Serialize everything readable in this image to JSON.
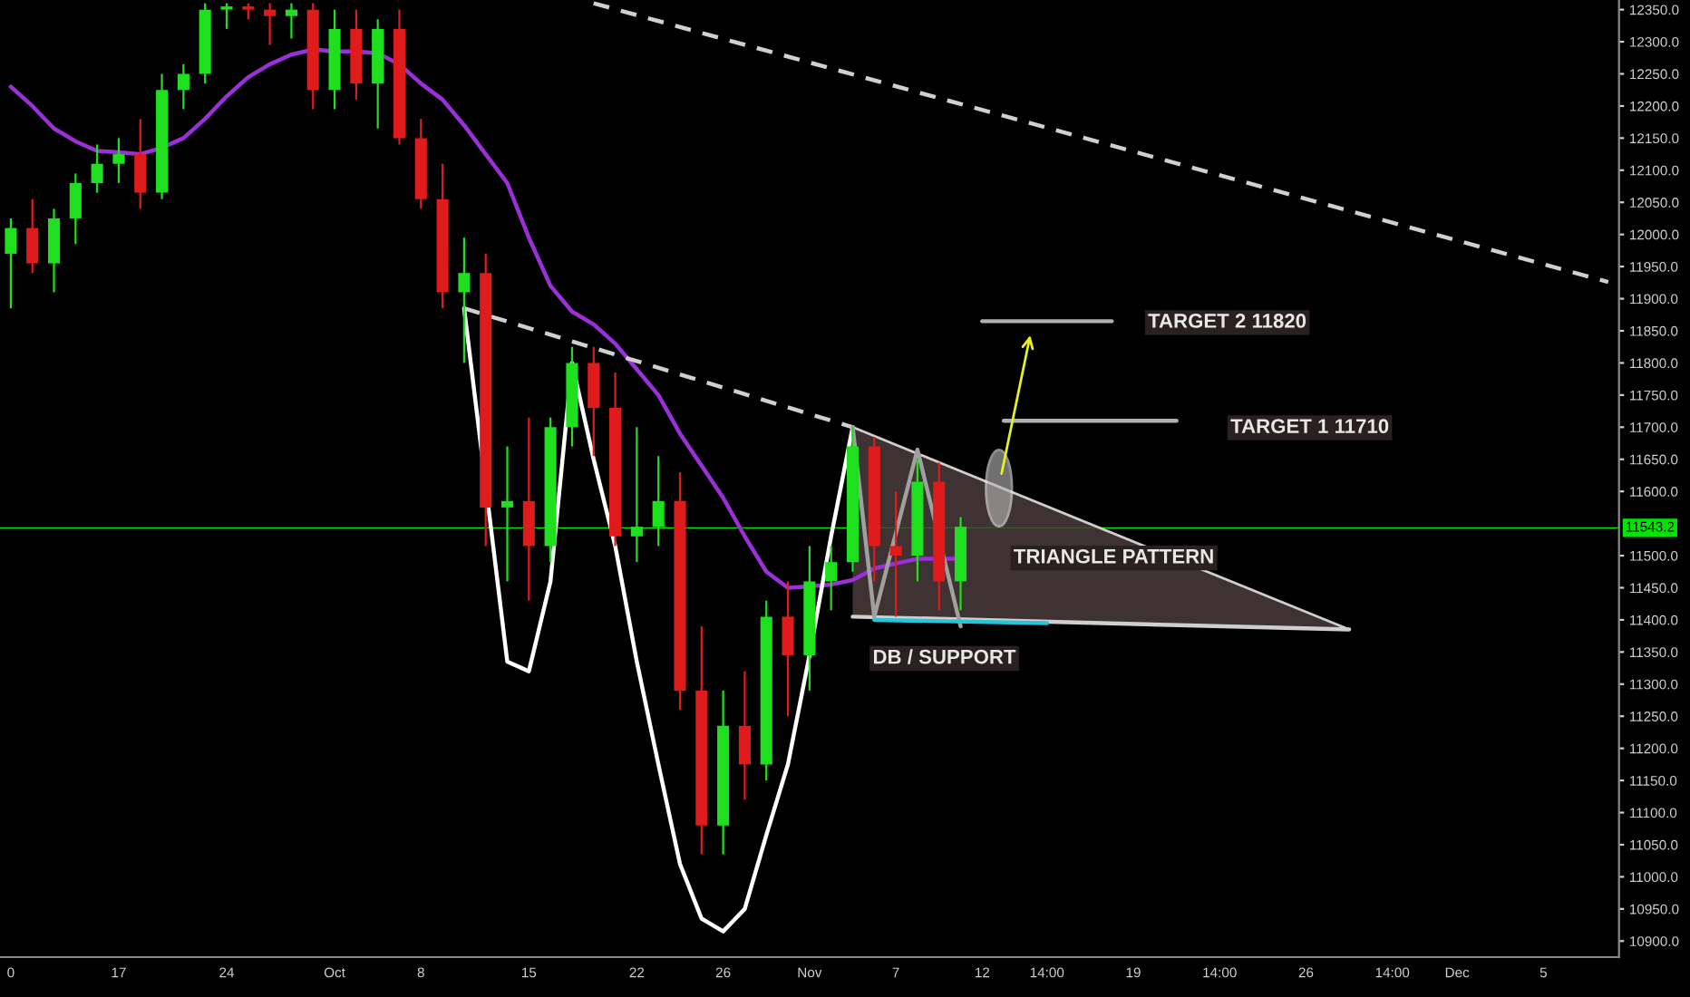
{
  "chart_data": {
    "type": "candlestick",
    "categories": [
      "0",
      null,
      null,
      null,
      null,
      "17",
      null,
      null,
      null,
      null,
      "24",
      null,
      null,
      null,
      null,
      "Oct",
      null,
      null,
      null,
      "8",
      null,
      null,
      null,
      null,
      "15",
      null,
      null,
      null,
      null,
      "22",
      null,
      null,
      null,
      "26",
      null,
      null,
      null,
      "Nov",
      null,
      null,
      null,
      "7",
      null,
      null,
      null,
      "12",
      null,
      null,
      "14:00",
      null,
      null,
      null,
      "19",
      null,
      null,
      null,
      "14:00",
      null,
      null,
      null,
      "26",
      null,
      null,
      null,
      "14:00",
      null,
      null,
      "Dec",
      null,
      null,
      null,
      "5",
      null,
      null,
      null
    ],
    "ohlc": [
      [
        11970,
        12025,
        11885,
        12010
      ],
      [
        12010,
        12055,
        11940,
        11955
      ],
      [
        11955,
        12040,
        11910,
        12025
      ],
      [
        12025,
        12095,
        11985,
        12080
      ],
      [
        12080,
        12140,
        12065,
        12110
      ],
      [
        12110,
        12150,
        12080,
        12125
      ],
      [
        12125,
        12180,
        12040,
        12065
      ],
      [
        12065,
        12250,
        12055,
        12225
      ],
      [
        12225,
        12265,
        12195,
        12250
      ],
      [
        12250,
        12360,
        12235,
        12350
      ],
      [
        12350,
        12360,
        12320,
        12355
      ],
      [
        12355,
        12360,
        12335,
        12350
      ],
      [
        12350,
        12360,
        12295,
        12340
      ],
      [
        12340,
        12360,
        12305,
        12350
      ],
      [
        12350,
        12360,
        12195,
        12225
      ],
      [
        12225,
        12350,
        12195,
        12320
      ],
      [
        12320,
        12350,
        12210,
        12235
      ],
      [
        12235,
        12335,
        12165,
        12320
      ],
      [
        12320,
        12350,
        12140,
        12150
      ],
      [
        12150,
        12180,
        12040,
        12055
      ],
      [
        12055,
        12110,
        11885,
        11910
      ],
      [
        11910,
        11995,
        11800,
        11940
      ],
      [
        11940,
        11970,
        11515,
        11575
      ],
      [
        11575,
        11670,
        11460,
        11585
      ],
      [
        11585,
        11715,
        11430,
        11515
      ],
      [
        11515,
        11715,
        11490,
        11700
      ],
      [
        11700,
        11825,
        11670,
        11800
      ],
      [
        11800,
        11825,
        11655,
        11730
      ],
      [
        11730,
        11785,
        11515,
        11530
      ],
      [
        11530,
        11700,
        11490,
        11545
      ],
      [
        11545,
        11655,
        11515,
        11585
      ],
      [
        11585,
        11630,
        11260,
        11290
      ],
      [
        11290,
        11390,
        11035,
        11080
      ],
      [
        11080,
        11290,
        11035,
        11235
      ],
      [
        11235,
        11320,
        11120,
        11175
      ],
      [
        11175,
        11430,
        11150,
        11405
      ],
      [
        11405,
        11460,
        11250,
        11345
      ],
      [
        11345,
        11515,
        11290,
        11460
      ],
      [
        11460,
        11515,
        11415,
        11490
      ],
      [
        11490,
        11700,
        11475,
        11670
      ],
      [
        11670,
        11685,
        11460,
        11515
      ],
      [
        11515,
        11600,
        11405,
        11500
      ],
      [
        11500,
        11650,
        11460,
        11615
      ],
      [
        11615,
        11645,
        11415,
        11460
      ],
      [
        11460,
        11560,
        11415,
        11545
      ],
      null,
      null,
      null,
      null,
      null,
      null,
      null,
      null,
      null,
      null,
      null,
      null,
      null,
      null,
      null,
      null,
      null,
      null,
      null,
      null,
      null,
      null,
      null,
      null,
      null,
      null,
      null,
      null,
      null,
      null
    ],
    "series": [
      {
        "type": "area",
        "color": "#4a3b3b",
        "values": [
          null,
          null,
          null,
          null,
          null,
          null,
          null,
          null,
          null,
          null,
          null,
          null,
          null,
          null,
          null,
          null,
          null,
          null,
          null,
          null,
          null,
          null,
          null,
          null,
          null,
          null,
          null,
          null,
          null,
          null,
          null,
          null,
          null,
          null,
          null,
          null,
          null,
          null,
          null,
          11700,
          null,
          null,
          null,
          null,
          null,
          null,
          null,
          null,
          null,
          null,
          null,
          null,
          null,
          null,
          null,
          null,
          null,
          null,
          null,
          null,
          null,
          null,
          11385,
          null,
          null,
          null,
          null,
          null,
          null,
          null,
          null,
          null,
          null,
          null,
          null
        ]
      },
      {
        "type": "line",
        "color": "#cfcfcf",
        "line_style": "solid",
        "values": [
          null,
          null,
          null,
          null,
          null,
          null,
          null,
          null,
          null,
          null,
          null,
          null,
          null,
          null,
          null,
          null,
          null,
          null,
          null,
          null,
          null,
          null,
          null,
          null,
          null,
          null,
          null,
          null,
          null,
          null,
          null,
          null,
          null,
          null,
          null,
          null,
          null,
          null,
          null,
          11405,
          null,
          null,
          null,
          null,
          null,
          null,
          null,
          null,
          null,
          null,
          null,
          null,
          null,
          null,
          null,
          null,
          null,
          null,
          null,
          null,
          null,
          null,
          11385,
          null,
          null,
          null,
          null,
          null,
          null,
          null,
          null,
          null,
          null,
          null,
          null
        ]
      },
      {
        "type": "line",
        "color": "#9b30d9",
        "line_style": "solid",
        "values": [
          12230,
          12200,
          12165,
          12145,
          12130,
          12128,
          12125,
          12135,
          12150,
          12180,
          12215,
          12245,
          12265,
          12280,
          12288,
          12285,
          12285,
          12282,
          12265,
          12235,
          12210,
          12170,
          12125,
          12080,
          11995,
          11920,
          11880,
          11860,
          11830,
          11790,
          11750,
          11690,
          11640,
          11590,
          11530,
          11475,
          11450,
          11452,
          11455,
          11462,
          11480,
          11488,
          11495,
          11495,
          11495,
          null,
          null,
          null,
          null,
          null,
          null,
          null,
          null,
          null,
          null,
          null,
          null,
          null,
          null,
          null,
          null,
          null,
          null,
          null,
          null,
          null,
          null,
          null,
          null,
          null,
          null,
          null,
          null,
          null,
          null
        ]
      },
      {
        "type": "line",
        "color": "#d0d0d0",
        "line_style": "dashed",
        "values": [
          null,
          null,
          null,
          null,
          null,
          null,
          null,
          null,
          null,
          null,
          null,
          null,
          null,
          null,
          null,
          null,
          null,
          null,
          null,
          null,
          null,
          null,
          null,
          null,
          null,
          null,
          null,
          12360,
          null,
          null,
          null,
          null,
          null,
          null,
          null,
          null,
          null,
          null,
          null,
          null,
          null,
          null,
          null,
          null,
          null,
          null,
          null,
          null,
          null,
          null,
          null,
          null,
          null,
          null,
          null,
          null,
          null,
          null,
          null,
          null,
          null,
          null,
          null,
          null,
          null,
          null,
          null,
          null,
          null,
          null,
          null,
          null,
          null,
          null,
          11926
        ]
      },
      {
        "type": "line",
        "color": "#d0d0d0",
        "line_style": "dashed",
        "values": [
          null,
          null,
          null,
          null,
          null,
          null,
          null,
          null,
          null,
          null,
          null,
          null,
          null,
          null,
          null,
          null,
          null,
          null,
          null,
          null,
          null,
          11885,
          null,
          null,
          null,
          null,
          null,
          null,
          null,
          null,
          null,
          null,
          null,
          null,
          null,
          null,
          null,
          null,
          null,
          11700,
          null,
          null,
          null,
          null,
          null,
          null,
          null,
          null,
          null,
          null,
          null,
          null,
          null,
          null,
          null,
          null,
          null,
          null,
          null,
          null,
          null,
          null,
          null,
          null,
          null,
          null,
          null,
          null,
          null,
          null,
          null,
          null,
          null,
          null,
          null
        ]
      },
      {
        "type": "line",
        "color": "#ffffff",
        "line_style": "solid",
        "values": [
          null,
          null,
          null,
          null,
          null,
          null,
          null,
          null,
          null,
          null,
          null,
          null,
          null,
          null,
          null,
          null,
          null,
          null,
          null,
          null,
          null,
          11885,
          null,
          11335,
          11320,
          11460,
          11800,
          11650,
          11515,
          11335,
          11175,
          11020,
          10935,
          10915,
          10950,
          11065,
          11175,
          11345,
          11530,
          11700,
          null,
          null,
          null,
          null,
          null,
          null,
          null,
          null,
          null,
          null,
          null,
          null,
          null,
          null,
          null,
          null,
          null,
          null,
          null,
          null,
          null,
          null,
          null,
          null,
          null,
          null,
          null,
          null,
          null,
          null,
          null,
          null,
          null,
          null,
          null
        ]
      },
      {
        "type": "line",
        "color": "#a0a0a0",
        "line_style": "solid",
        "values": [
          null,
          null,
          null,
          null,
          null,
          null,
          null,
          null,
          null,
          null,
          null,
          null,
          null,
          null,
          null,
          null,
          null,
          null,
          null,
          null,
          null,
          null,
          null,
          null,
          null,
          null,
          null,
          null,
          null,
          null,
          null,
          null,
          null,
          null,
          null,
          null,
          null,
          null,
          null,
          11700,
          11405,
          null,
          11665,
          null,
          11390,
          null,
          null,
          null,
          null,
          null,
          null,
          null,
          null,
          null,
          null,
          null,
          null,
          null,
          null,
          null,
          null,
          null,
          null,
          null,
          null,
          null,
          null,
          null,
          null,
          null,
          null,
          null,
          null,
          null,
          null
        ]
      },
      {
        "type": "line",
        "color": "#26c6da",
        "line_style": "solid",
        "values": [
          null,
          null,
          null,
          null,
          null,
          null,
          null,
          null,
          null,
          null,
          null,
          null,
          null,
          null,
          null,
          null,
          null,
          null,
          null,
          null,
          null,
          null,
          null,
          null,
          null,
          null,
          null,
          null,
          null,
          null,
          null,
          null,
          null,
          null,
          null,
          null,
          null,
          null,
          null,
          null,
          11400,
          null,
          null,
          null,
          null,
          null,
          null,
          null,
          11395,
          null,
          null,
          null,
          null,
          null,
          null,
          null,
          null,
          null,
          null,
          null,
          null,
          null,
          null,
          null,
          null,
          null,
          null,
          null,
          null,
          null,
          null,
          null,
          null,
          null,
          null
        ]
      },
      {
        "type": "line",
        "color": "#b0b0b0",
        "line_style": "solid",
        "values": [
          null,
          null,
          null,
          null,
          null,
          null,
          null,
          null,
          null,
          null,
          null,
          null,
          null,
          null,
          null,
          null,
          null,
          null,
          null,
          null,
          null,
          null,
          null,
          null,
          null,
          null,
          null,
          null,
          null,
          null,
          null,
          null,
          null,
          null,
          null,
          null,
          null,
          null,
          null,
          null,
          null,
          null,
          null,
          null,
          null,
          11865,
          null,
          null,
          null,
          null,
          null,
          11865,
          null,
          null,
          null,
          null,
          null,
          null,
          null,
          null,
          null,
          null,
          null,
          null,
          null,
          null,
          null,
          null,
          null,
          null,
          null,
          null,
          null,
          null,
          null
        ]
      },
      {
        "type": "line",
        "color": "#b0b0b0",
        "line_style": "solid",
        "values": [
          null,
          null,
          null,
          null,
          null,
          null,
          null,
          null,
          null,
          null,
          null,
          null,
          null,
          null,
          null,
          null,
          null,
          null,
          null,
          null,
          null,
          null,
          null,
          null,
          null,
          null,
          null,
          null,
          null,
          null,
          null,
          null,
          null,
          null,
          null,
          null,
          null,
          null,
          null,
          null,
          null,
          null,
          null,
          null,
          null,
          null,
          11710,
          null,
          null,
          null,
          null,
          null,
          null,
          null,
          11710,
          null,
          null,
          null,
          null,
          null,
          null,
          null,
          null,
          null,
          null,
          null,
          null,
          null,
          null,
          null,
          null,
          null,
          null,
          null,
          null
        ]
      }
    ],
    "ref_lines": [
      {
        "axis": "y",
        "value": 11543.2,
        "label": "11543.2",
        "color": "#00e600"
      }
    ],
    "annotations": [
      "TARGET 2 11820",
      "TARGET 1 11710",
      "TRIANGLE PATTERN",
      "DB / SUPPORT"
    ],
    "ylim": [
      10875,
      12365
    ],
    "yticks": [
      {
        "value": 10900,
        "label": "10900.0"
      },
      {
        "value": 10950,
        "label": "10950.0"
      },
      {
        "value": 11000,
        "label": "11000.0"
      },
      {
        "value": 11050,
        "label": "11050.0"
      },
      {
        "value": 11100,
        "label": "11100.0"
      },
      {
        "value": 11150,
        "label": "11150.0"
      },
      {
        "value": 11200,
        "label": "11200.0"
      },
      {
        "value": 11250,
        "label": "11250.0"
      },
      {
        "value": 11300,
        "label": "11300.0"
      },
      {
        "value": 11350,
        "label": "11350.0"
      },
      {
        "value": 11400,
        "label": "11400.0"
      },
      {
        "value": 11450,
        "label": "11450.0"
      },
      {
        "value": 11500,
        "label": "11500.0"
      },
      {
        "value": 11600,
        "label": "11600.0"
      },
      {
        "value": 11650,
        "label": "11650.0"
      },
      {
        "value": 11700,
        "label": "11700.0"
      },
      {
        "value": 11750,
        "label": "11750.0"
      },
      {
        "value": 11800,
        "label": "11800.0"
      },
      {
        "value": 11850,
        "label": "11850.0"
      },
      {
        "value": 11900,
        "label": "11900.0"
      },
      {
        "value": 11950,
        "label": "11950.0"
      },
      {
        "value": 12000,
        "label": "12000.0"
      },
      {
        "value": 12050,
        "label": "12050.0"
      },
      {
        "value": 12100,
        "label": "12100.0"
      },
      {
        "value": 12150,
        "label": "12150.0"
      },
      {
        "value": 12200,
        "label": "12200.0"
      },
      {
        "value": 12250,
        "label": "12250.0"
      },
      {
        "value": 12300,
        "label": "12300.0"
      },
      {
        "value": 12350,
        "label": "12350.0"
      }
    ]
  }
}
